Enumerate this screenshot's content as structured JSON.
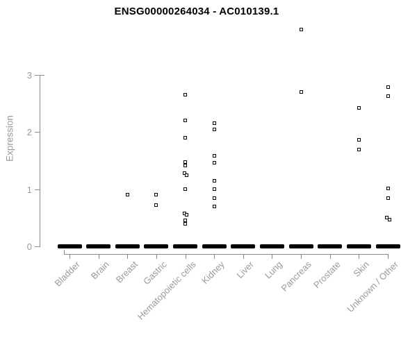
{
  "title": "ENSG00000264034 - AC010139.1",
  "chart_data": {
    "type": "scatter",
    "title": "ENSG00000264034 - AC010139.1",
    "xlabel": "",
    "ylabel": "Expression",
    "ylim": [
      0,
      3.9
    ],
    "yticks": [
      0,
      1,
      2,
      3
    ],
    "grid": false,
    "legend": "none",
    "marker": "open-square",
    "categories": [
      "Bladder",
      "Brain",
      "Breast",
      "Gastric",
      "Hematopoietic cells",
      "Kidney",
      "Liver",
      "Lung",
      "Pancreas",
      "Prostate",
      "Skin",
      "Unknown / Other"
    ],
    "series": [
      {
        "category": "Bladder",
        "values": [],
        "zero_cluster": true
      },
      {
        "category": "Brain",
        "values": [],
        "zero_cluster": true
      },
      {
        "category": "Breast",
        "values": [
          0.9
        ],
        "zero_cluster": true
      },
      {
        "category": "Gastric",
        "values": [
          0.9,
          0.72
        ],
        "zero_cluster": true
      },
      {
        "category": "Hematopoietic cells",
        "values": [
          2.65,
          2.2,
          1.9,
          1.48,
          1.41,
          1.28,
          1.25,
          1.0,
          0.58,
          0.55,
          0.45,
          0.4
        ],
        "zero_cluster": true
      },
      {
        "category": "Kidney",
        "values": [
          2.15,
          2.05,
          1.59,
          1.46,
          1.15,
          1.0,
          0.85,
          0.7
        ],
        "zero_cluster": true
      },
      {
        "category": "Liver",
        "values": [],
        "zero_cluster": true
      },
      {
        "category": "Lung",
        "values": [],
        "zero_cluster": true
      },
      {
        "category": "Pancreas",
        "values": [
          3.8,
          2.7
        ],
        "zero_cluster": true
      },
      {
        "category": "Prostate",
        "values": [],
        "zero_cluster": true
      },
      {
        "category": "Skin",
        "values": [
          2.42,
          1.86,
          1.69
        ],
        "zero_cluster": true
      },
      {
        "category": "Unknown / Other",
        "values": [
          2.79,
          2.63,
          1.01,
          0.84,
          0.5,
          0.47
        ],
        "zero_cluster": true
      }
    ],
    "jitter_offsets": {
      "4": [
        0,
        0,
        0,
        0,
        0,
        -1.5,
        1.5,
        0,
        -1.5,
        1.5,
        0,
        0
      ],
      "11": [
        0,
        0,
        0,
        0,
        -2,
        2
      ]
    }
  },
  "colors": {
    "marker": "#000000",
    "zero_cluster": "#000000",
    "axis_line": "#8a8a8a",
    "axis_text": "#9a9a9a",
    "title_text": "#000000",
    "background": "#ffffff"
  }
}
